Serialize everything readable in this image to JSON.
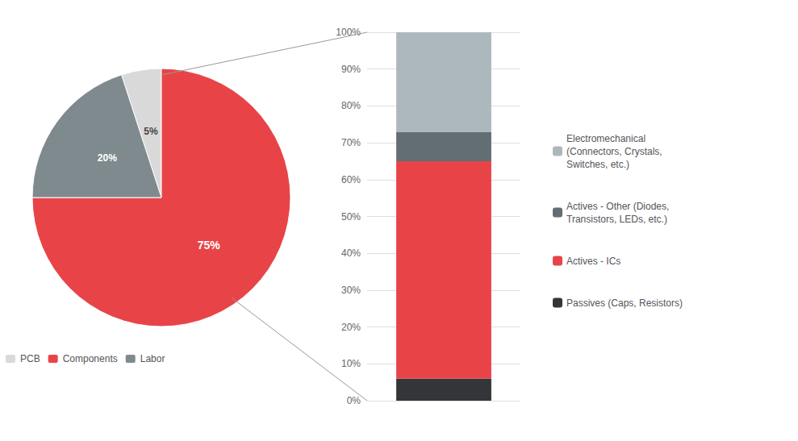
{
  "chart_data": [
    {
      "type": "pie",
      "categories": [
        "PCB",
        "Components",
        "Labor"
      ],
      "values": [
        5,
        75,
        20
      ],
      "value_labels": [
        "5%",
        "75%",
        "20%"
      ],
      "colors": [
        "#d9d9d9",
        "#e84448",
        "#7f8a8e"
      ],
      "data_labels": true,
      "legend": "bottom"
    },
    {
      "type": "bar",
      "stacked": true,
      "categories": [
        null
      ],
      "series": [
        {
          "name": "Passives (Caps, Resistors)",
          "color": "#333538",
          "values": [
            6
          ]
        },
        {
          "name": "Actives - ICs",
          "color": "#e84448",
          "values": [
            59
          ]
        },
        {
          "name": "Actives - Other (Diodes,\nTransistors, LEDs, etc.)",
          "color": "#636d74",
          "values": [
            8
          ]
        },
        {
          "name": "Electromechanical\n(Connectors, Crystals,\nSwitches, etc.)",
          "color": "#adb8bc",
          "values": [
            27
          ]
        }
      ],
      "ylim": [
        0,
        100
      ],
      "yticks": [
        {
          "value": 0,
          "label": "0%"
        },
        {
          "value": 10,
          "label": "10%"
        },
        {
          "value": 20,
          "label": "20%"
        },
        {
          "value": 30,
          "label": "30%"
        },
        {
          "value": 40,
          "label": "40%"
        },
        {
          "value": 50,
          "label": "50%"
        },
        {
          "value": 60,
          "label": "60%"
        },
        {
          "value": 70,
          "label": "70%"
        },
        {
          "value": 80,
          "label": "80%"
        },
        {
          "value": 90,
          "label": "90%"
        },
        {
          "value": 100,
          "label": "100%"
        }
      ],
      "grid": true,
      "tick_labels": "y",
      "legend": "right"
    }
  ]
}
